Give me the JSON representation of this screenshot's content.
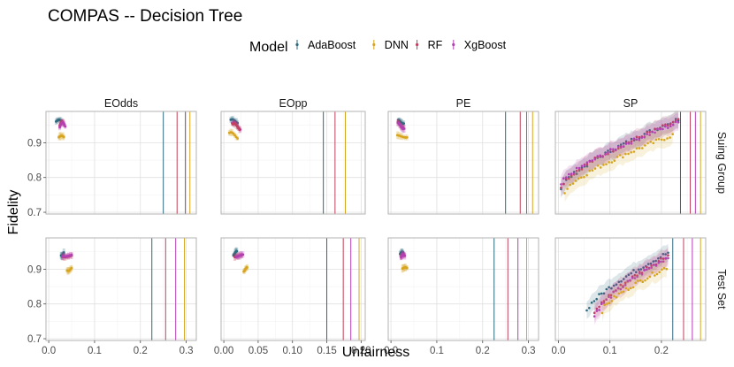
{
  "chart_data": {
    "type": "scatter",
    "title": "COMPAS -- Decision Tree",
    "xlabel": "Unfairness",
    "ylabel": "Fidelity",
    "legend": {
      "title": "Model",
      "placement": "top",
      "entries": [
        {
          "name": "AdaBoost",
          "color": "#2d6a7f"
        },
        {
          "name": "DNN",
          "color": "#d6a520"
        },
        {
          "name": "RF",
          "color": "#c2405c"
        },
        {
          "name": "XgBoost",
          "color": "#b43fb4"
        }
      ]
    },
    "facet_cols": [
      "EOdds",
      "EOpp",
      "PE",
      "SP"
    ],
    "facet_rows": [
      "Suing Group",
      "Test Set"
    ],
    "ylim": [
      0.695,
      0.99
    ],
    "y_ticks": [
      0.7,
      0.8,
      0.9
    ],
    "x_axes": [
      {
        "lim": [
          -0.006,
          0.322
        ],
        "ticks": [
          0.0,
          0.1,
          0.2,
          0.3
        ],
        "labels": [
          "0.0",
          "0.1",
          "0.2",
          "0.3"
        ]
      },
      {
        "lim": [
          -0.004,
          0.206
        ],
        "ticks": [
          0.0,
          0.05,
          0.1,
          0.15,
          0.2
        ],
        "labels": [
          "0.00",
          "0.05",
          "0.10",
          "0.15",
          "0.20"
        ]
      },
      {
        "lim": [
          -0.006,
          0.322
        ],
        "ticks": [
          0.0,
          0.1,
          0.2,
          0.3
        ],
        "labels": [
          "0.0",
          "0.1",
          "0.2",
          "0.3"
        ]
      },
      {
        "lim": [
          -0.006,
          0.286
        ],
        "ticks": [
          0.0,
          0.1,
          0.2
        ],
        "labels": [
          "0.0",
          "0.1",
          "0.2"
        ]
      }
    ],
    "panels": [
      {
        "col": "EOdds",
        "row": "Suing Group",
        "vlines": {
          "AdaBoost": 0.25,
          "RF": 0.28,
          "XgBoost": 0.298,
          "DNN": 0.308
        },
        "clusters": [
          {
            "model": "AdaBoost",
            "x": [
              0.016,
              0.029
            ],
            "y": [
              0.956,
              0.966
            ]
          },
          {
            "model": "RF",
            "x": [
              0.024,
              0.034
            ],
            "y": [
              0.94,
              0.96
            ]
          },
          {
            "model": "XgBoost",
            "x": [
              0.024,
              0.036
            ],
            "y": [
              0.932,
              0.958
            ]
          },
          {
            "model": "DNN",
            "x": [
              0.022,
              0.033
            ],
            "y": [
              0.912,
              0.92
            ]
          }
        ]
      },
      {
        "col": "EOpp",
        "row": "Suing Group",
        "vlines": {
          "AdaBoost": 0.145,
          "RF": 0.162,
          "XgBoost": 0.177,
          "DNN": 0.177
        },
        "clusters": [
          {
            "model": "AdaBoost",
            "x": [
              0.01,
              0.02
            ],
            "y": [
              0.955,
              0.967
            ]
          },
          {
            "model": "XgBoost",
            "x": [
              0.012,
              0.024
            ],
            "y": [
              0.935,
              0.958
            ]
          },
          {
            "model": "RF",
            "x": [
              0.013,
              0.023
            ],
            "y": [
              0.935,
              0.955
            ]
          },
          {
            "model": "DNN",
            "x": [
              0.008,
              0.02
            ],
            "y": [
              0.91,
              0.93
            ]
          }
        ]
      },
      {
        "col": "PE",
        "row": "Suing Group",
        "vlines": {
          "AdaBoost": 0.25,
          "RF": 0.282,
          "XgBoost": 0.296,
          "DNN": 0.309
        },
        "clusters": [
          {
            "model": "AdaBoost",
            "x": [
              0.016,
              0.028
            ],
            "y": [
              0.955,
              0.966
            ]
          },
          {
            "model": "RF",
            "x": [
              0.015,
              0.027
            ],
            "y": [
              0.943,
              0.96
            ]
          },
          {
            "model": "XgBoost",
            "x": [
              0.015,
              0.029
            ],
            "y": [
              0.94,
              0.958
            ]
          },
          {
            "model": "DNN",
            "x": [
              0.014,
              0.035
            ],
            "y": [
              0.915,
              0.922
            ]
          }
        ]
      },
      {
        "col": "SP",
        "row": "Suing Group",
        "vlines": {
          "AdaBoost": 0.237,
          "RF": 0.256,
          "XgBoost": 0.266,
          "DNN": 0.276
        },
        "trends": [
          {
            "model": "AdaBoost",
            "x": [
              0.005,
              0.233
            ],
            "y": [
              0.77,
              0.968
            ],
            "n": 46
          },
          {
            "model": "RF",
            "x": [
              0.005,
              0.233
            ],
            "y": [
              0.775,
              0.963
            ],
            "n": 46
          },
          {
            "model": "XgBoost",
            "x": [
              0.005,
              0.233
            ],
            "y": [
              0.78,
              0.958
            ],
            "n": 46
          },
          {
            "model": "DNN",
            "x": [
              0.012,
              0.222
            ],
            "y": [
              0.76,
              0.922
            ],
            "n": 40
          }
        ]
      },
      {
        "col": "EOdds",
        "row": "Test Set",
        "vlines": {
          "AdaBoost": 0.225,
          "RF": 0.255,
          "XgBoost": 0.277,
          "DNN": 0.296
        },
        "clusters": [
          {
            "model": "AdaBoost",
            "x": [
              0.027,
              0.033
            ],
            "y": [
              0.938,
              0.95
            ]
          },
          {
            "model": "RF",
            "x": [
              0.03,
              0.05
            ],
            "y": [
              0.935,
              0.94
            ]
          },
          {
            "model": "XgBoost",
            "x": [
              0.03,
              0.05
            ],
            "y": [
              0.937,
              0.942
            ]
          },
          {
            "model": "DNN",
            "x": [
              0.04,
              0.05
            ],
            "y": [
              0.895,
              0.905
            ]
          }
        ]
      },
      {
        "col": "EOpp",
        "row": "Test Set",
        "vlines": {
          "AdaBoost": 0.15,
          "RF": 0.174,
          "XgBoost": 0.185,
          "DNN": 0.197
        },
        "clusters": [
          {
            "model": "AdaBoost",
            "x": [
              0.014,
              0.019
            ],
            "y": [
              0.94,
              0.952
            ]
          },
          {
            "model": "RF",
            "x": [
              0.016,
              0.026
            ],
            "y": [
              0.935,
              0.94
            ]
          },
          {
            "model": "XgBoost",
            "x": [
              0.018,
              0.028
            ],
            "y": [
              0.935,
              0.942
            ]
          },
          {
            "model": "DNN",
            "x": [
              0.029,
              0.034
            ],
            "y": [
              0.893,
              0.905
            ]
          }
        ]
      },
      {
        "col": "PE",
        "row": "Test Set",
        "vlines": {
          "AdaBoost": 0.225,
          "RF": 0.255,
          "XgBoost": 0.277,
          "DNN": 0.296
        },
        "clusters": [
          {
            "model": "AdaBoost",
            "x": [
              0.02,
              0.027
            ],
            "y": [
              0.94,
              0.95
            ]
          },
          {
            "model": "RF",
            "x": [
              0.022,
              0.03
            ],
            "y": [
              0.932,
              0.942
            ]
          },
          {
            "model": "XgBoost",
            "x": [
              0.022,
              0.03
            ],
            "y": [
              0.93,
              0.942
            ]
          },
          {
            "model": "DNN",
            "x": [
              0.025,
              0.035
            ],
            "y": [
              0.9,
              0.905
            ]
          }
        ]
      },
      {
        "col": "SP",
        "row": "Test Set",
        "vlines": {
          "AdaBoost": 0.222,
          "RF": 0.243,
          "XgBoost": 0.26,
          "DNN": 0.276
        },
        "trends": [
          {
            "model": "AdaBoost",
            "x": [
              0.055,
              0.213
            ],
            "y": [
              0.78,
              0.947
            ],
            "n": 34
          },
          {
            "model": "RF",
            "x": [
              0.07,
              0.213
            ],
            "y": [
              0.77,
              0.94
            ],
            "n": 32
          },
          {
            "model": "XgBoost",
            "x": [
              0.07,
              0.213
            ],
            "y": [
              0.765,
              0.935
            ],
            "n": 32
          },
          {
            "model": "DNN",
            "x": [
              0.085,
              0.21
            ],
            "y": [
              0.78,
              0.905
            ],
            "n": 28
          }
        ]
      }
    ]
  }
}
